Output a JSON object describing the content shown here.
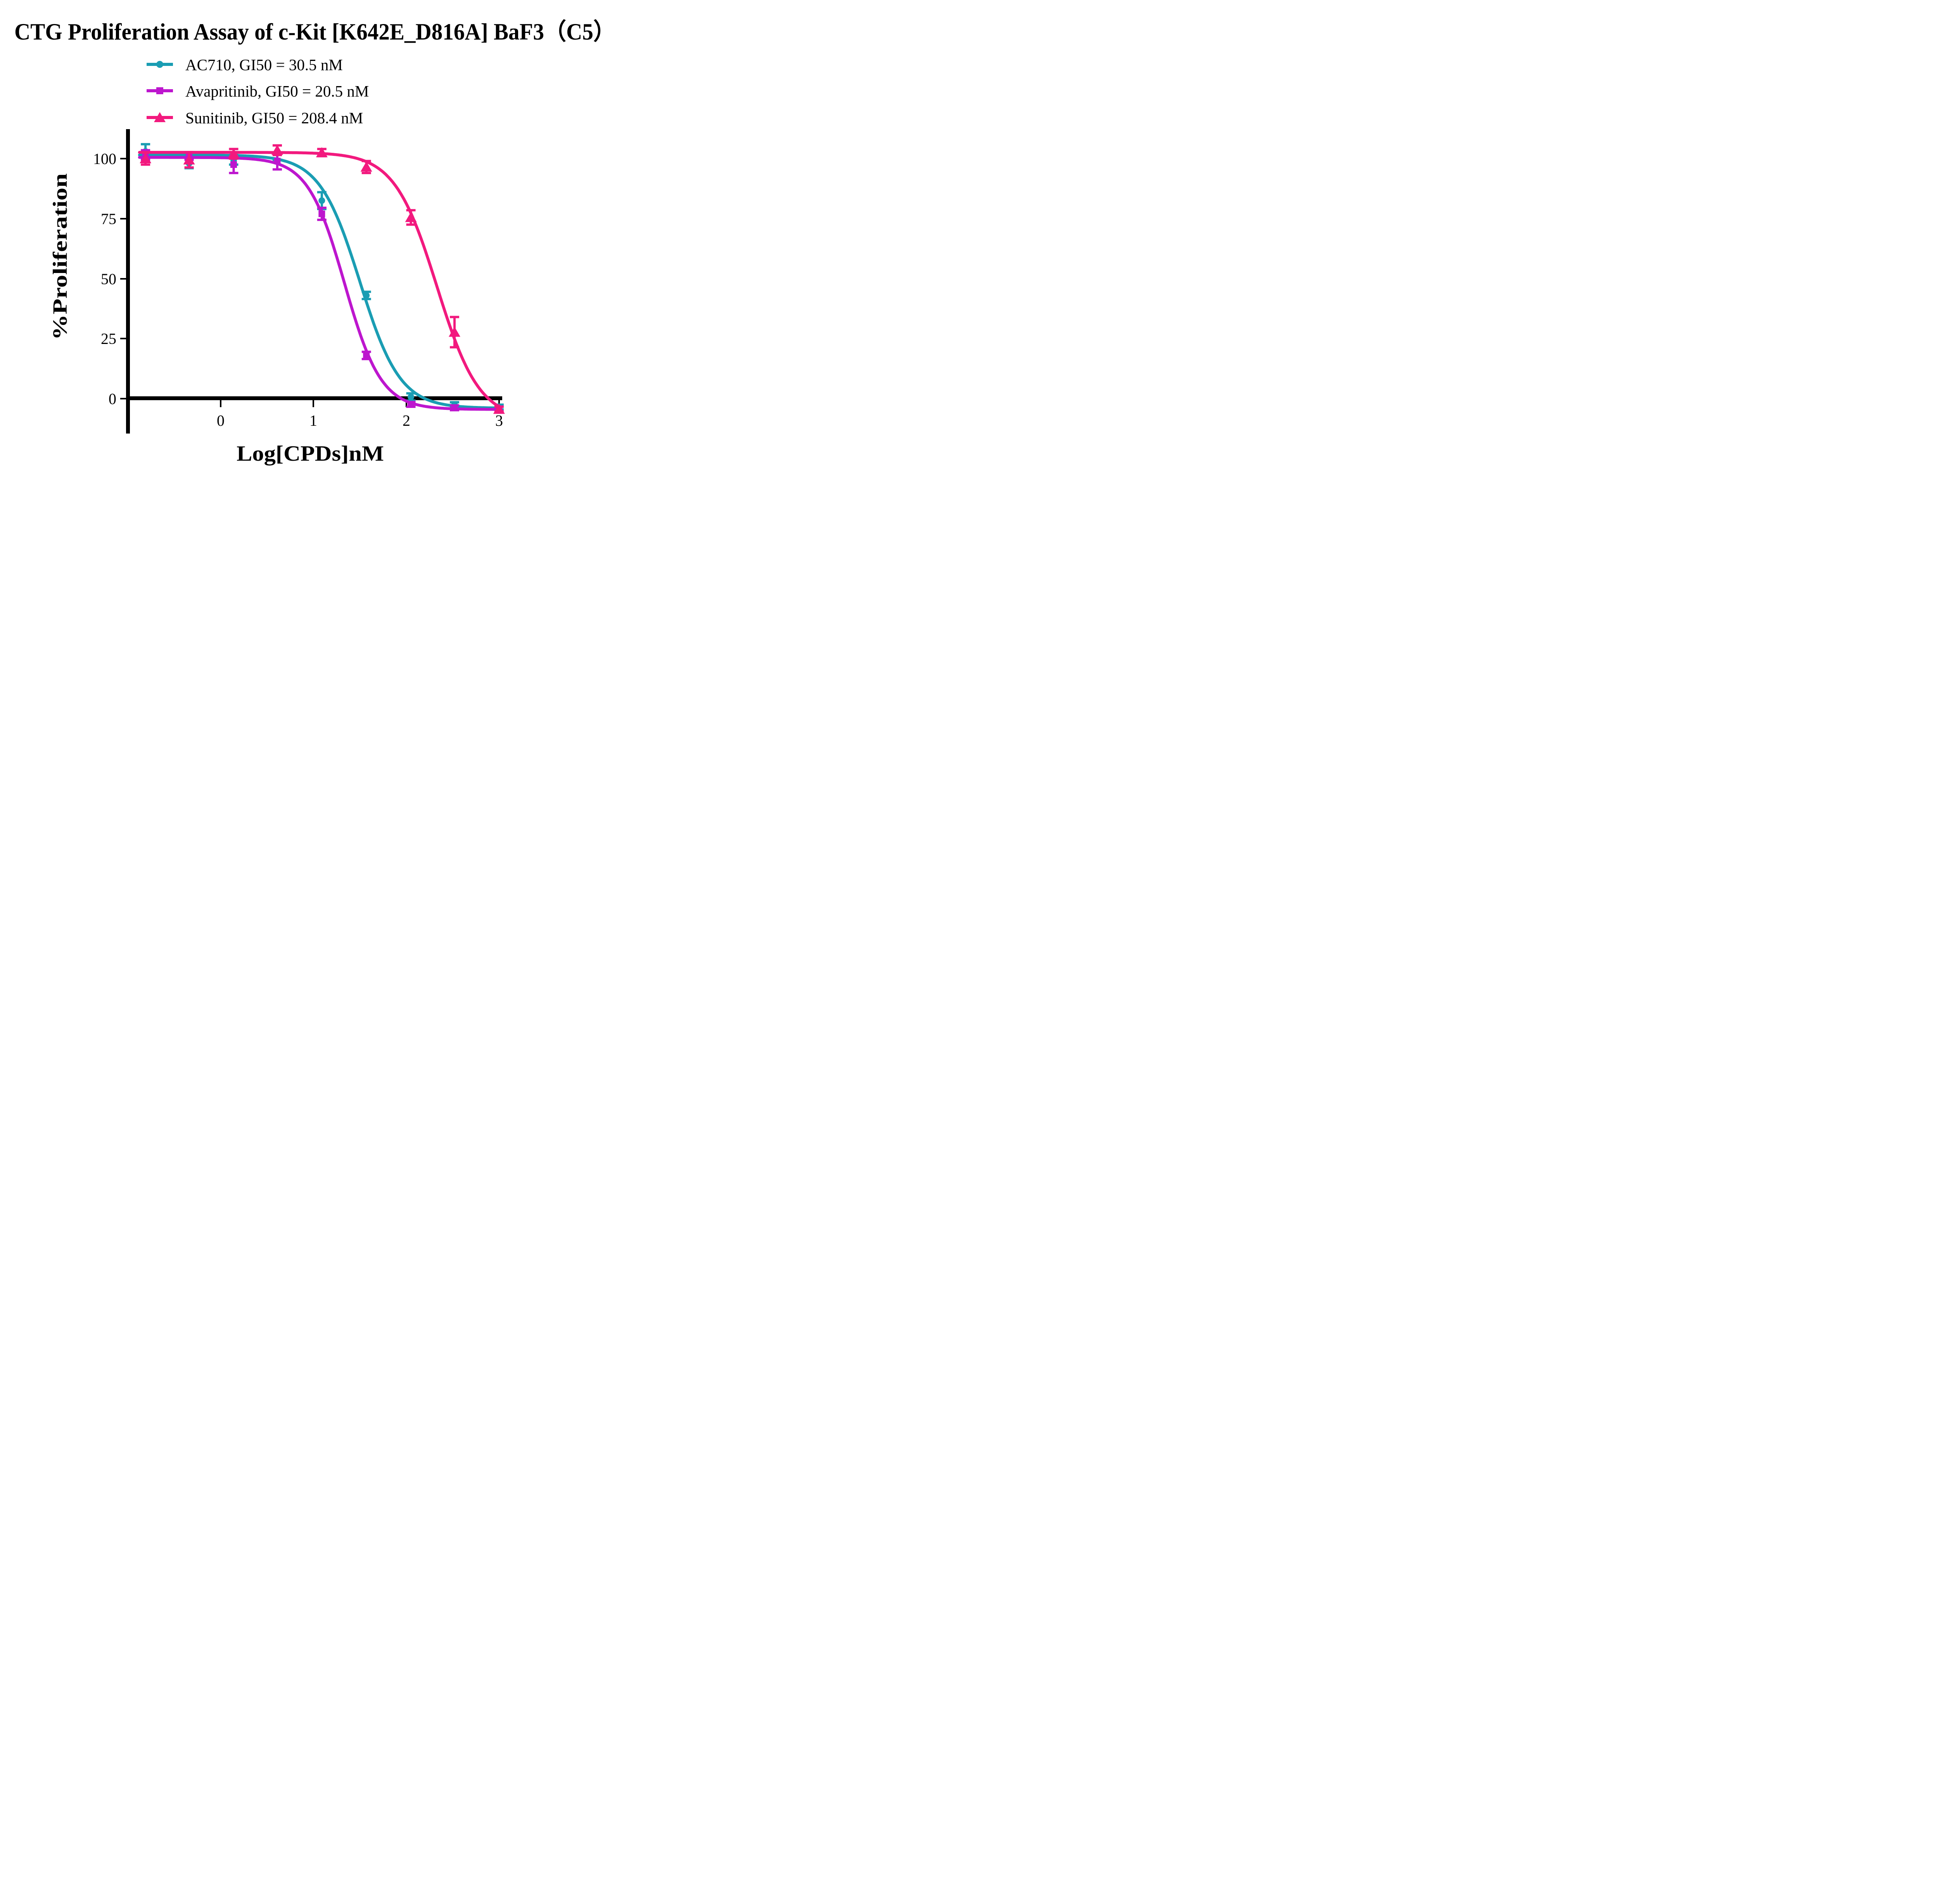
{
  "title": "CTG Proliferation Assay of c-Kit [K642E_D816A] BaF3（C5）",
  "axes": {
    "x": {
      "label": "Log[CPDs]nM",
      "tick_labels": [
        "0",
        "1",
        "2",
        "3"
      ],
      "min": -0.875,
      "max": 3.0
    },
    "y": {
      "label": "%Proliferation",
      "tick_labels": [
        "100",
        "75",
        "50",
        "25",
        "0"
      ],
      "min": 0,
      "max": 100
    }
  },
  "chart_data": {
    "type": "line",
    "x_label": "Log[CPDs]nM",
    "y_label": "%Proliferation",
    "x_log_values": [
      -0.81,
      -0.34,
      0.14,
      0.61,
      1.09,
      1.57,
      2.05,
      2.52,
      3.0
    ],
    "xlim": [
      -0.875,
      3.0
    ],
    "ylim": [
      0,
      100
    ],
    "legend_position": "top-center",
    "grid": false,
    "series": [
      {
        "name": "AC710",
        "gi50": "30.5 nM",
        "legend": "AC710, GI50 = 30.5 nM",
        "color": "#1A9DB3",
        "marker": "circle",
        "values": [
          103,
          98,
          99.5,
          102.5,
          82.5,
          43,
          0.7,
          -2.5,
          -3.5
        ],
        "errors": [
          3,
          2,
          2,
          3,
          3.5,
          1.5,
          1.5,
          1,
          1
        ],
        "fit": {
          "top": 101.5,
          "bottom": -4.0,
          "logec50": 1.5,
          "hill": 2.0
        }
      },
      {
        "name": "Avapritinib",
        "gi50": "20.5 nM",
        "legend": "Avapritinib, GI50 = 20.5 nM",
        "color": "#BD16CE",
        "marker": "square",
        "values": [
          101.5,
          101,
          97.5,
          99,
          77,
          18,
          -2.4,
          -3.8,
          -4.3
        ],
        "errors": [
          2,
          1.5,
          3.5,
          3.5,
          2.5,
          1.5,
          1,
          1,
          1
        ],
        "fit": {
          "top": 100.5,
          "bottom": -4.5,
          "logec50": 1.335,
          "hill": 2.2
        }
      },
      {
        "name": "Sunitinib",
        "gi50": "208.4 nM",
        "legend": "Sunitinib, GI50 = 208.4 nM",
        "color": "#F2197E",
        "marker": "triangle",
        "values": [
          100,
          99.5,
          102,
          103.5,
          102.5,
          96.5,
          75.5,
          27.7,
          -4.4
        ],
        "errors": [
          2.5,
          3.2,
          2,
          2,
          1.5,
          2.5,
          3,
          6.3,
          1
        ],
        "fit": {
          "top": 102.6,
          "bottom": -9.0,
          "logec50": 2.33,
          "hill": 1.9
        }
      }
    ]
  }
}
